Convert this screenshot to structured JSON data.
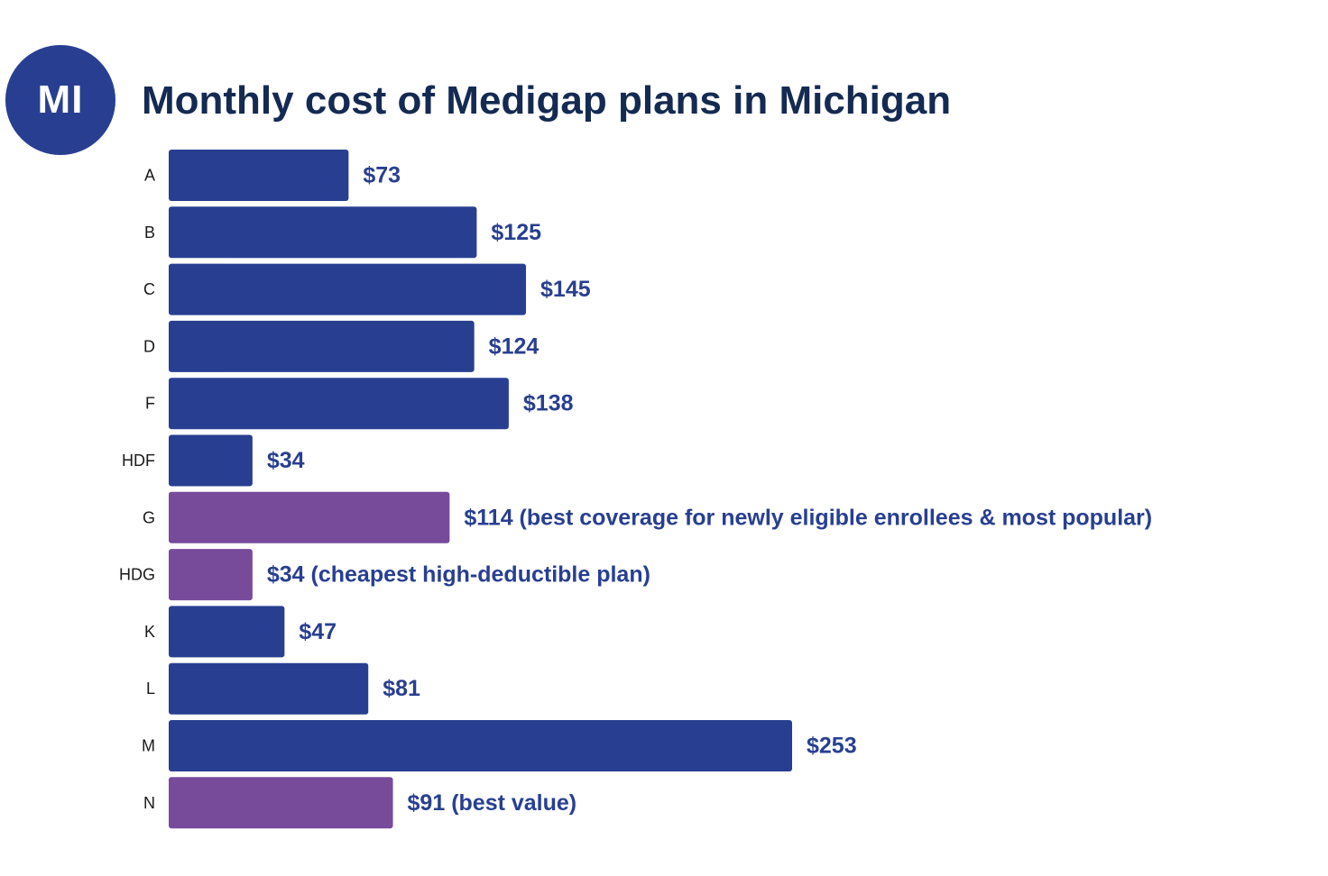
{
  "badge": {
    "text": "MI"
  },
  "chart_data": {
    "type": "bar",
    "orientation": "horizontal",
    "title": "Monthly cost of Medigap plans in Michigan",
    "xlabel": "",
    "ylabel": "",
    "grid": false,
    "legend": "none",
    "xlim": [
      0,
      253
    ],
    "categories": [
      "A",
      "B",
      "C",
      "D",
      "F",
      "HDF",
      "G",
      "HDG",
      "K",
      "L",
      "M",
      "N"
    ],
    "values": [
      73,
      125,
      145,
      124,
      138,
      34,
      114,
      34,
      47,
      81,
      253,
      91
    ],
    "data_labels": [
      "$73",
      "$125",
      "$145",
      "$124",
      "$138",
      "$34",
      "$114 (best coverage for newly eligible enrollees & most popular)",
      "$34 (cheapest high-deductible plan)",
      "$47",
      "$81",
      "$253",
      "$91 (best value)"
    ],
    "highlighted": [
      false,
      false,
      false,
      false,
      false,
      false,
      true,
      true,
      false,
      false,
      false,
      true
    ],
    "colors": {
      "default": "#283f91",
      "highlight": "#774a9a",
      "label": "#283f91",
      "title": "#142a52",
      "badge": "#283f91"
    }
  }
}
